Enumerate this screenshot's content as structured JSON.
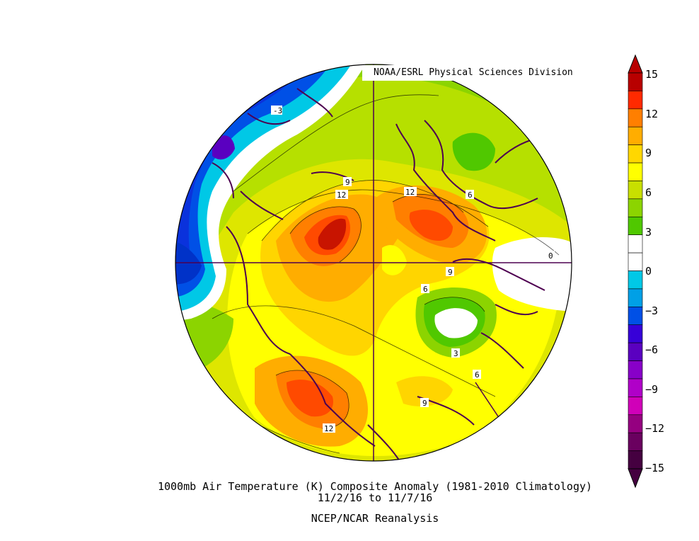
{
  "credit": "NOAA/ESRL Physical Sciences Division",
  "caption": {
    "title": "1000mb Air Temperature (K) Composite Anomaly (1981-2010 Climatology)",
    "dates": "11/2/16  to 11/7/16",
    "source": "NCEP/NCAR Reanalysis"
  },
  "colorbar": {
    "labels": [
      "15",
      "12",
      "9",
      "6",
      "3",
      "0",
      "−3",
      "−6",
      "−9",
      "−12",
      "−15"
    ],
    "colors": [
      "#b80000",
      "#ff2a00",
      "#ff7f00",
      "#ffad00",
      "#ffd700",
      "#ffff00",
      "#c8df00",
      "#8cd400",
      "#50c800",
      "#ffffff",
      "#ffffff",
      "#00c8e6",
      "#00a0e6",
      "#0050e6",
      "#3700d8",
      "#5a00c0",
      "#8800c8",
      "#b000c8",
      "#d000b8",
      "#950080",
      "#6a005f",
      "#450040"
    ]
  },
  "contour_labels": [
    "-3",
    "9",
    "12",
    "12",
    "6",
    "0",
    "9",
    "6",
    "3",
    "6",
    "9",
    "12"
  ],
  "map": {
    "anomaly_field": "1000mb air temperature anomaly",
    "features": [
      "coastlines",
      "meridian-lines"
    ]
  }
}
